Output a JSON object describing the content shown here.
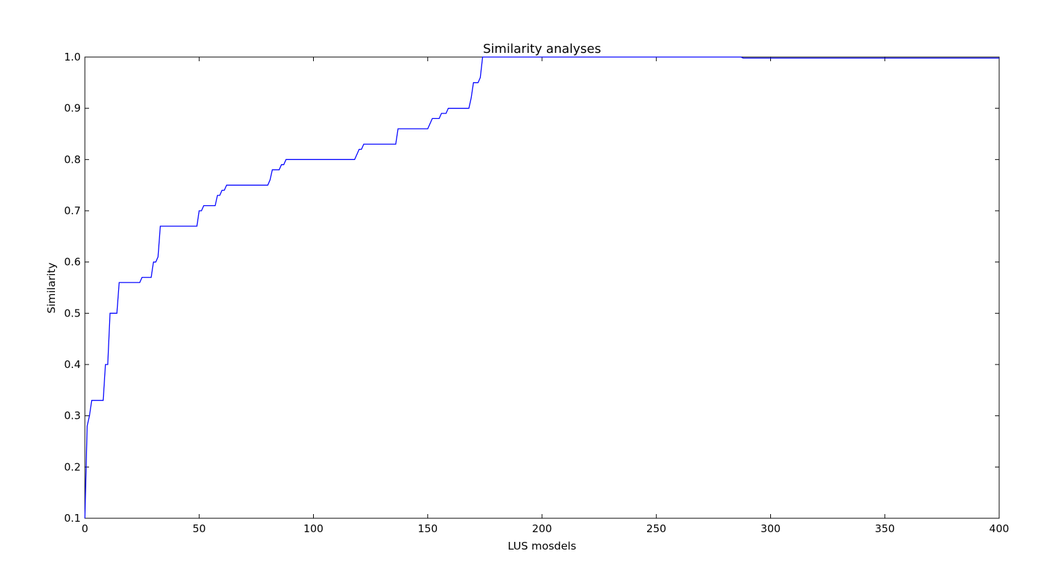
{
  "chart_data": {
    "type": "line",
    "title": "Similarity analyses",
    "xlabel": "LUS mosdels",
    "ylabel": "Similarity",
    "xlim": [
      0,
      400
    ],
    "ylim": [
      0.1,
      1.0
    ],
    "grid": false,
    "xticks": [
      0,
      50,
      100,
      150,
      200,
      250,
      300,
      350,
      400
    ],
    "xtick_labels": [
      "0",
      "50",
      "100",
      "150",
      "200",
      "250",
      "300",
      "350",
      "400"
    ],
    "yticks": [
      0.1,
      0.2,
      0.3,
      0.4,
      0.5,
      0.6,
      0.7,
      0.8,
      0.9,
      1.0
    ],
    "ytick_labels": [
      "0.1",
      "0.2",
      "0.3",
      "0.4",
      "0.5",
      "0.6",
      "0.7",
      "0.8",
      "0.9",
      "1.0"
    ],
    "line_color": "#0000ff",
    "series": [
      {
        "name": "Similarity",
        "x": [
          0,
          1,
          2,
          3,
          4,
          5,
          6,
          7,
          8,
          9,
          10,
          11,
          12,
          13,
          14,
          15,
          20,
          24,
          25,
          29,
          30,
          31,
          32,
          33,
          40,
          45,
          49,
          50,
          51,
          52,
          55,
          57,
          58,
          59,
          60,
          61,
          62,
          70,
          80,
          81,
          82,
          85,
          86,
          87,
          88,
          100,
          110,
          118,
          120,
          121,
          122,
          130,
          136,
          137,
          150,
          152,
          155,
          156,
          158,
          159,
          160,
          168,
          169,
          170,
          172,
          173,
          174,
          190,
          287,
          288,
          400
        ],
        "y": [
          0.1,
          0.28,
          0.3,
          0.33,
          0.33,
          0.33,
          0.33,
          0.33,
          0.33,
          0.4,
          0.4,
          0.5,
          0.5,
          0.5,
          0.5,
          0.56,
          0.56,
          0.56,
          0.57,
          0.57,
          0.6,
          0.6,
          0.61,
          0.67,
          0.67,
          0.67,
          0.67,
          0.7,
          0.7,
          0.71,
          0.71,
          0.71,
          0.73,
          0.73,
          0.74,
          0.74,
          0.75,
          0.75,
          0.75,
          0.76,
          0.78,
          0.78,
          0.79,
          0.79,
          0.8,
          0.8,
          0.8,
          0.8,
          0.82,
          0.82,
          0.83,
          0.83,
          0.83,
          0.86,
          0.86,
          0.88,
          0.88,
          0.89,
          0.89,
          0.9,
          0.9,
          0.9,
          0.92,
          0.95,
          0.95,
          0.96,
          1.0,
          1.0,
          1.0,
          0.998,
          0.998
        ]
      }
    ]
  }
}
